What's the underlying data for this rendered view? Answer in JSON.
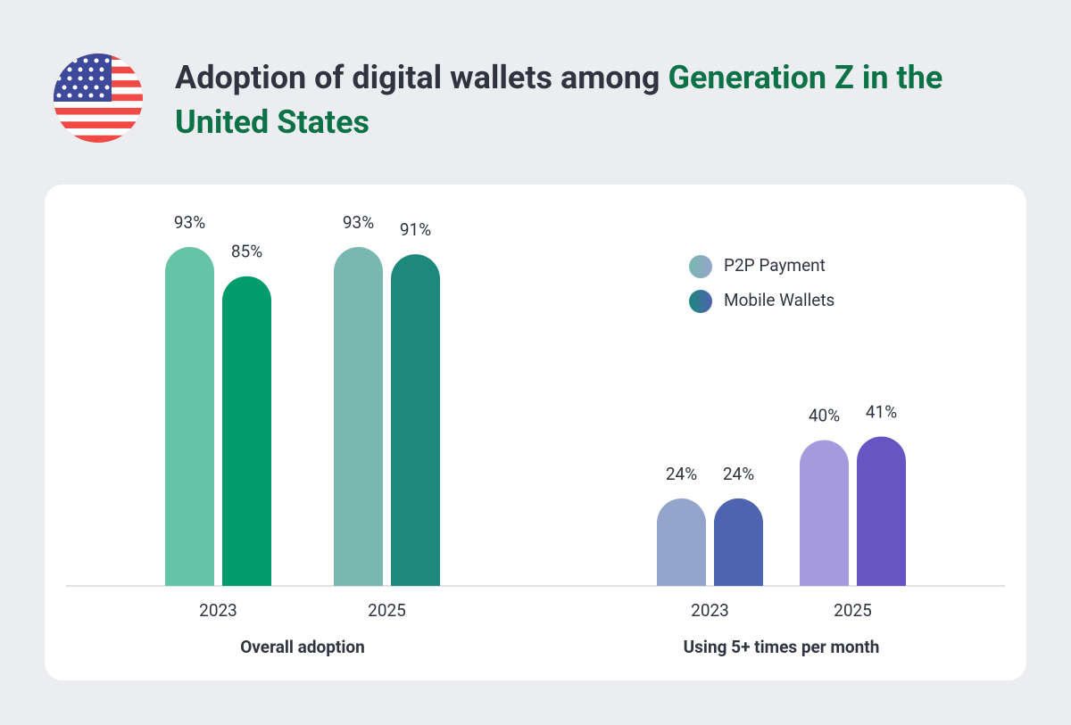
{
  "chart_data": {
    "type": "bar",
    "title": "Adoption of digital wallets among",
    "title_highlight": "Generation Z in the United States",
    "legend": [
      {
        "name": "P2P Payment",
        "colors": [
          "#79b8b0",
          "#93a5cb"
        ]
      },
      {
        "name": "Mobile Wallets",
        "colors": [
          "#1e877e",
          "#4f64b0"
        ]
      }
    ],
    "groups": [
      {
        "label": "Overall adoption",
        "categories": [
          "2023",
          "2025"
        ],
        "series": [
          {
            "colors": [
              "#66c4a6",
              "#79b8b0"
            ],
            "values": [
              93,
              93
            ],
            "value_labels": [
              "93%",
              "93%"
            ]
          },
          {
            "colors": [
              "#009c6a",
              "#1e877e"
            ],
            "values": [
              85,
              91
            ],
            "value_labels": [
              "85%",
              "91%"
            ]
          }
        ]
      },
      {
        "label": "Using 5+ times per month",
        "categories": [
          "2023",
          "2025"
        ],
        "series": [
          {
            "colors": [
              "#93a5cb",
              "#a59bdc"
            ],
            "values": [
              24,
              40
            ],
            "value_labels": [
              "24%",
              "40%"
            ]
          },
          {
            "colors": [
              "#4f64b0",
              "#6756c2"
            ],
            "values": [
              24,
              41
            ],
            "value_labels": [
              "24%",
              "41%"
            ]
          }
        ]
      }
    ]
  }
}
